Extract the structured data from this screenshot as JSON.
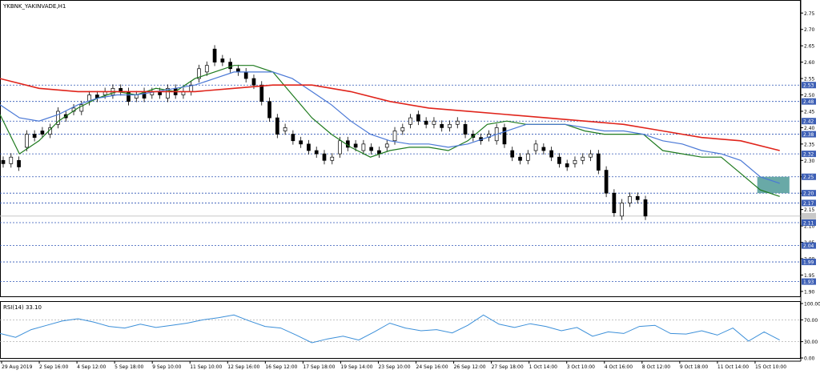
{
  "window": {
    "symbol_title": "YKBNK_YAKINVADE,H1",
    "indicator_title": "RSI(14) 33.10"
  },
  "colors": {
    "background": "#ffffff",
    "grid": "#d9d9d9",
    "level": "#2f55b5",
    "sma_fast": "#1e7a1e",
    "sma_mid": "#4a78d6",
    "sma_slow": "#e0241b",
    "candle": "#000000",
    "zone": "#4f9a98",
    "rsi_line": "#3b8fd9",
    "label_fill": "#3d5fb5"
  },
  "chart_data": [
    {
      "type": "line",
      "title": "YKBNK_YAKINVADE,H1",
      "ylim": [
        1.885,
        2.78
      ],
      "y_ticks": [
        1.9,
        1.95,
        2.0,
        2.05,
        2.1,
        2.15,
        2.2,
        2.25,
        2.3,
        2.35,
        2.4,
        2.45,
        2.5,
        2.55,
        2.6,
        2.65,
        2.7,
        2.75
      ],
      "y_tick_labels": [
        "1.90",
        "1.95",
        "2.00",
        "2.05",
        "2.10",
        "2.15",
        "2.20",
        "2.25",
        "2.30",
        "2.35",
        "2.40",
        "2.45",
        "2.50",
        "2.55",
        "2.60",
        "2.65",
        "2.70",
        "2.75"
      ],
      "x_tick_labels": [
        "29 Aug 2019",
        "2 Sep 16:00",
        "4 Sep 12:00",
        "5 Sep 18:00",
        "9 Sep 10:00",
        "11 Sep 10:00",
        "12 Sep 16:00",
        "16 Sep 12:00",
        "17 Sep 18:00",
        "19 Sep 14:00",
        "23 Sep 10:00",
        "24 Sep 16:00",
        "26 Sep 12:00",
        "27 Sep 18:00",
        "1 Oct 14:00",
        "3 Oct 10:00",
        "4 Oct 16:00",
        "8 Oct 12:00",
        "9 Oct 18:00",
        "11 Oct 14:00",
        "15 Oct 10:00"
      ],
      "levels": [
        {
          "value": 2.53,
          "label": "2.53"
        },
        {
          "value": 2.48,
          "label": "2.48"
        },
        {
          "value": 2.42,
          "label": "2.42"
        },
        {
          "value": 2.38,
          "label": "2.38"
        },
        {
          "value": 2.32,
          "label": "2.32"
        },
        {
          "value": 2.25,
          "label": "2.25"
        },
        {
          "value": 2.2,
          "label": "2.20"
        },
        {
          "value": 2.17,
          "label": "2.17"
        },
        {
          "value": 2.11,
          "label": "2.11"
        },
        {
          "value": 2.04,
          "label": "2.04"
        },
        {
          "value": 1.99,
          "label": "1.99"
        },
        {
          "value": 1.93,
          "label": "1.93"
        }
      ],
      "current_price": 2.13,
      "zone": {
        "x_start": 777,
        "x_end": 810,
        "y_low": 2.2,
        "y_high": 2.25
      },
      "x_count": 820,
      "series": [
        {
          "role": "sma_fast",
          "x": [
            0,
            20,
            40,
            60,
            80,
            100,
            120,
            140,
            160,
            180,
            200,
            220,
            240,
            260,
            280,
            300,
            320,
            340,
            360,
            380,
            400,
            420,
            440,
            460,
            480,
            500,
            520,
            540,
            560,
            580,
            600,
            620,
            640,
            660,
            680,
            700,
            720,
            740,
            760,
            780,
            800
          ],
          "y": [
            2.44,
            2.32,
            2.36,
            2.42,
            2.46,
            2.49,
            2.51,
            2.5,
            2.52,
            2.51,
            2.55,
            2.57,
            2.59,
            2.59,
            2.57,
            2.5,
            2.43,
            2.38,
            2.34,
            2.31,
            2.33,
            2.34,
            2.34,
            2.33,
            2.36,
            2.41,
            2.42,
            2.41,
            2.41,
            2.41,
            2.39,
            2.38,
            2.38,
            2.38,
            2.33,
            2.32,
            2.31,
            2.31,
            2.26,
            2.21,
            2.19
          ]
        },
        {
          "role": "sma_mid",
          "x": [
            0,
            20,
            40,
            60,
            80,
            100,
            120,
            140,
            160,
            180,
            200,
            220,
            240,
            260,
            280,
            300,
            320,
            340,
            360,
            380,
            400,
            420,
            440,
            460,
            480,
            500,
            520,
            540,
            560,
            580,
            600,
            620,
            640,
            660,
            680,
            700,
            720,
            740,
            760,
            780,
            800
          ],
          "y": [
            2.47,
            2.43,
            2.42,
            2.44,
            2.47,
            2.49,
            2.5,
            2.5,
            2.51,
            2.52,
            2.53,
            2.55,
            2.57,
            2.57,
            2.57,
            2.55,
            2.51,
            2.47,
            2.42,
            2.38,
            2.36,
            2.35,
            2.35,
            2.34,
            2.35,
            2.37,
            2.39,
            2.41,
            2.41,
            2.41,
            2.4,
            2.39,
            2.39,
            2.38,
            2.36,
            2.35,
            2.33,
            2.32,
            2.3,
            2.25,
            2.23
          ]
        },
        {
          "role": "sma_slow",
          "x": [
            0,
            40,
            80,
            120,
            160,
            200,
            240,
            280,
            320,
            360,
            400,
            440,
            480,
            520,
            560,
            600,
            640,
            680,
            720,
            760,
            800
          ],
          "y": [
            2.55,
            2.52,
            2.51,
            2.51,
            2.51,
            2.51,
            2.52,
            2.53,
            2.53,
            2.51,
            2.48,
            2.46,
            2.45,
            2.44,
            2.43,
            2.42,
            2.41,
            2.39,
            2.37,
            2.36,
            2.33
          ]
        }
      ],
      "candles": [
        [
          2.3,
          2.29
        ],
        [
          2.29,
          2.31
        ],
        [
          2.3,
          2.28
        ],
        [
          2.34,
          2.38
        ],
        [
          2.38,
          2.37
        ],
        [
          2.39,
          2.38
        ],
        [
          2.38,
          2.4
        ],
        [
          2.41,
          2.45
        ],
        [
          2.44,
          2.43
        ],
        [
          2.45,
          2.46
        ],
        [
          2.45,
          2.47
        ],
        [
          2.48,
          2.5
        ],
        [
          2.5,
          2.49
        ],
        [
          2.5,
          2.51
        ],
        [
          2.5,
          2.52
        ],
        [
          2.52,
          2.51
        ],
        [
          2.51,
          2.48
        ],
        [
          2.49,
          2.5
        ],
        [
          2.51,
          2.49
        ],
        [
          2.5,
          2.51
        ],
        [
          2.51,
          2.5
        ],
        [
          2.49,
          2.52
        ],
        [
          2.52,
          2.5
        ],
        [
          2.5,
          2.51
        ],
        [
          2.51,
          2.53
        ],
        [
          2.55,
          2.58
        ],
        [
          2.57,
          2.59
        ],
        [
          2.64,
          2.6
        ],
        [
          2.61,
          2.6
        ],
        [
          2.6,
          2.58
        ],
        [
          2.58,
          2.57
        ],
        [
          2.57,
          2.55
        ],
        [
          2.55,
          2.53
        ],
        [
          2.53,
          2.48
        ],
        [
          2.48,
          2.43
        ],
        [
          2.43,
          2.38
        ],
        [
          2.39,
          2.4
        ],
        [
          2.38,
          2.36
        ],
        [
          2.36,
          2.35
        ],
        [
          2.35,
          2.33
        ],
        [
          2.33,
          2.32
        ],
        [
          2.32,
          2.3
        ],
        [
          2.3,
          2.31
        ],
        [
          2.32,
          2.36
        ],
        [
          2.36,
          2.34
        ],
        [
          2.35,
          2.34
        ],
        [
          2.33,
          2.35
        ],
        [
          2.34,
          2.33
        ],
        [
          2.33,
          2.32
        ],
        [
          2.34,
          2.35
        ],
        [
          2.36,
          2.39
        ],
        [
          2.39,
          2.4
        ],
        [
          2.41,
          2.43
        ],
        [
          2.44,
          2.42
        ],
        [
          2.42,
          2.41
        ],
        [
          2.41,
          2.42
        ],
        [
          2.41,
          2.4
        ],
        [
          2.4,
          2.41
        ],
        [
          2.41,
          2.42
        ],
        [
          2.41,
          2.38
        ],
        [
          2.38,
          2.37
        ],
        [
          2.37,
          2.36
        ],
        [
          2.37,
          2.38
        ],
        [
          2.36,
          2.4
        ],
        [
          2.4,
          2.35
        ],
        [
          2.33,
          2.31
        ],
        [
          2.31,
          2.3
        ],
        [
          2.3,
          2.32
        ],
        [
          2.33,
          2.35
        ],
        [
          2.34,
          2.33
        ],
        [
          2.33,
          2.31
        ],
        [
          2.31,
          2.29
        ],
        [
          2.29,
          2.28
        ],
        [
          2.29,
          2.3
        ],
        [
          2.3,
          2.31
        ],
        [
          2.31,
          2.32
        ],
        [
          2.32,
          2.27
        ],
        [
          2.27,
          2.2
        ],
        [
          2.2,
          2.14
        ],
        [
          2.13,
          2.17
        ],
        [
          2.17,
          2.19
        ],
        [
          2.19,
          2.18
        ],
        [
          2.18,
          2.13
        ]
      ]
    },
    {
      "type": "line",
      "title": "RSI(14) 33.10",
      "ylim": [
        0,
        100
      ],
      "y_ticks": [
        0,
        30,
        70,
        100
      ],
      "y_tick_labels": [
        "0.00",
        "30.00",
        "70.00",
        "100.00"
      ],
      "levels": [
        30,
        70
      ],
      "series": [
        {
          "name": "RSI(14)",
          "x": [
            0,
            16,
            32,
            48,
            64,
            80,
            96,
            112,
            128,
            144,
            160,
            176,
            192,
            208,
            224,
            240,
            256,
            272,
            288,
            304,
            320,
            336,
            352,
            368,
            384,
            400,
            416,
            432,
            448,
            464,
            480,
            496,
            512,
            528,
            544,
            560,
            576,
            592,
            608,
            624,
            640,
            656,
            672,
            688,
            704,
            720,
            736,
            752,
            768,
            784,
            800
          ],
          "y": [
            45,
            38,
            52,
            60,
            68,
            72,
            66,
            58,
            55,
            62,
            56,
            60,
            64,
            70,
            74,
            79,
            68,
            58,
            55,
            42,
            28,
            35,
            40,
            33,
            48,
            64,
            55,
            50,
            52,
            46,
            60,
            79,
            62,
            56,
            63,
            58,
            50,
            56,
            40,
            48,
            45,
            58,
            60,
            45,
            44,
            50,
            42,
            55,
            31,
            48,
            33
          ]
        }
      ]
    }
  ]
}
